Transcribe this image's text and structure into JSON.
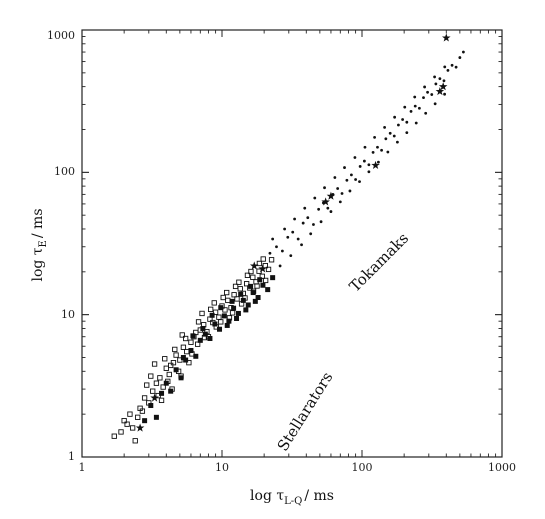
{
  "chart_data": {
    "type": "scatter",
    "title": "",
    "xscale": "log",
    "yscale": "log",
    "xlim": [
      1,
      1000
    ],
    "ylim": [
      1,
      1000
    ],
    "grid": false,
    "xlabel": {
      "main": "log τ",
      "sub": "L-Q",
      "rest": "/ ms"
    },
    "ylabel": {
      "main": "log τ",
      "sub": "E",
      "rest": "/ ms"
    },
    "x_ticks": [
      {
        "value": 1,
        "label": "1"
      },
      {
        "value": 10,
        "label": "10"
      },
      {
        "value": 100,
        "label": "100"
      },
      {
        "value": 1000,
        "label": "1000"
      }
    ],
    "y_ticks": [
      {
        "value": 1,
        "label": "1"
      },
      {
        "value": 10,
        "label": "10"
      },
      {
        "value": 100,
        "label": "100"
      },
      {
        "value": 1000,
        "label": "1000"
      }
    ],
    "annotations": [
      {
        "text": "Tokamaks",
        "x": 140,
        "y": 22,
        "rotation": -45
      },
      {
        "text": "Stellarators",
        "x": 42,
        "y": 2.0,
        "rotation": -58
      }
    ],
    "series": [
      {
        "marker": "open-square",
        "color": "#111111",
        "points": [
          [
            1.7,
            1.4
          ],
          [
            1.9,
            1.5
          ],
          [
            2.1,
            1.7
          ],
          [
            2.3,
            1.6
          ],
          [
            2.5,
            1.9
          ],
          [
            2.6,
            2.2
          ],
          [
            2.8,
            2.6
          ],
          [
            3.0,
            2.4
          ],
          [
            3.2,
            2.9
          ],
          [
            3.4,
            3.3
          ],
          [
            3.6,
            3.6
          ],
          [
            3.8,
            3.1
          ],
          [
            4.0,
            4.2
          ],
          [
            4.2,
            3.8
          ],
          [
            4.5,
            4.6
          ],
          [
            4.7,
            5.2
          ],
          [
            5.0,
            4.8
          ],
          [
            5.3,
            5.9
          ],
          [
            5.6,
            5.5
          ],
          [
            6.0,
            6.4
          ],
          [
            6.3,
            7.0
          ],
          [
            6.7,
            6.2
          ],
          [
            7.0,
            7.8
          ],
          [
            7.4,
            8.5
          ],
          [
            7.8,
            7.6
          ],
          [
            8.2,
            9.3
          ],
          [
            8.6,
            8.8
          ],
          [
            9.0,
            10.4
          ],
          [
            9.5,
            9.6
          ],
          [
            10.0,
            11.5
          ],
          [
            10.5,
            10.8
          ],
          [
            11.0,
            12.6
          ],
          [
            11.6,
            11.2
          ],
          [
            12.2,
            13.8
          ],
          [
            12.8,
            12.9
          ],
          [
            13.5,
            15.2
          ],
          [
            14.2,
            14.1
          ],
          [
            15.0,
            16.5
          ],
          [
            15.8,
            15.4
          ],
          [
            16.6,
            18.3
          ],
          [
            17.5,
            17.0
          ],
          [
            18.4,
            20.2
          ],
          [
            19.4,
            18.6
          ],
          [
            20.4,
            22.1
          ],
          [
            21.5,
            20.8
          ],
          [
            22.6,
            24.3
          ],
          [
            2.2,
            2.0
          ],
          [
            2.7,
            2.1
          ],
          [
            3.1,
            3.7
          ],
          [
            3.5,
            2.7
          ],
          [
            3.9,
            4.9
          ],
          [
            4.3,
            4.4
          ],
          [
            4.9,
            4.0
          ],
          [
            5.5,
            6.8
          ],
          [
            6.1,
            5.3
          ],
          [
            6.8,
            8.9
          ],
          [
            7.5,
            6.9
          ],
          [
            8.3,
            10.9
          ],
          [
            9.1,
            8.2
          ],
          [
            10.2,
            13.2
          ],
          [
            11.3,
            9.5
          ],
          [
            12.5,
            15.8
          ],
          [
            13.8,
            11.9
          ],
          [
            15.2,
            18.9
          ],
          [
            16.8,
            14.6
          ],
          [
            18.5,
            22.9
          ],
          [
            20.5,
            17.4
          ],
          [
            2.4,
            1.3
          ],
          [
            2.9,
            3.2
          ],
          [
            3.3,
            4.5
          ],
          [
            4.1,
            3.4
          ],
          [
            4.6,
            5.7
          ],
          [
            5.2,
            7.2
          ],
          [
            5.8,
            4.6
          ],
          [
            6.5,
            7.5
          ],
          [
            7.2,
            10.2
          ],
          [
            8.0,
            7.0
          ],
          [
            8.8,
            12.1
          ],
          [
            9.8,
            8.9
          ],
          [
            10.8,
            14.3
          ],
          [
            11.9,
            10.3
          ],
          [
            13.2,
            16.9
          ],
          [
            14.6,
            13.1
          ],
          [
            16.1,
            20.1
          ],
          [
            17.8,
            15.9
          ],
          [
            19.7,
            24.6
          ],
          [
            2.0,
            1.8
          ],
          [
            3.7,
            2.5
          ],
          [
            4.4,
            3.0
          ],
          [
            5.1,
            3.7
          ]
        ]
      },
      {
        "marker": "filled-square",
        "color": "#111111",
        "points": [
          [
            2.8,
            1.8
          ],
          [
            3.1,
            2.3
          ],
          [
            3.4,
            1.9
          ],
          [
            3.7,
            2.8
          ],
          [
            4.0,
            3.3
          ],
          [
            4.3,
            2.9
          ],
          [
            4.7,
            4.1
          ],
          [
            5.1,
            3.6
          ],
          [
            5.5,
            4.8
          ],
          [
            6.0,
            5.6
          ],
          [
            6.5,
            5.1
          ],
          [
            7.0,
            6.6
          ],
          [
            7.6,
            7.3
          ],
          [
            8.2,
            6.8
          ],
          [
            8.9,
            8.6
          ],
          [
            9.6,
            7.9
          ],
          [
            10.4,
            9.8
          ],
          [
            11.2,
            9.0
          ],
          [
            12.1,
            11.1
          ],
          [
            13.1,
            10.2
          ],
          [
            14.2,
            12.6
          ],
          [
            15.4,
            11.7
          ],
          [
            16.7,
            14.3
          ],
          [
            18.1,
            13.2
          ],
          [
            19.6,
            16.1
          ],
          [
            21.2,
            15.0
          ],
          [
            23.0,
            18.2
          ],
          [
            9.8,
            11.2
          ],
          [
            10.9,
            8.4
          ],
          [
            11.8,
            12.4
          ],
          [
            12.7,
            9.4
          ],
          [
            13.6,
            13.9
          ],
          [
            14.8,
            10.8
          ],
          [
            16.0,
            15.8
          ],
          [
            17.3,
            12.4
          ],
          [
            18.6,
            17.6
          ],
          [
            8.5,
            9.9
          ],
          [
            7.3,
            8.0
          ],
          [
            6.2,
            7.1
          ],
          [
            5.3,
            5.0
          ]
        ]
      },
      {
        "marker": "dot",
        "color": "#111111",
        "points": [
          [
            22.0,
            27.0
          ],
          [
            24.5,
            30.0
          ],
          [
            27.0,
            28.0
          ],
          [
            29.5,
            35.0
          ],
          [
            32.0,
            38.0
          ],
          [
            35.0,
            34.0
          ],
          [
            38.0,
            44.0
          ],
          [
            41.0,
            48.0
          ],
          [
            45.0,
            43.0
          ],
          [
            49.0,
            55.0
          ],
          [
            53.0,
            61.0
          ],
          [
            57.0,
            56.0
          ],
          [
            62.0,
            70.0
          ],
          [
            67.0,
            77.0
          ],
          [
            72.0,
            71.0
          ],
          [
            78.0,
            88.0
          ],
          [
            84.0,
            96.0
          ],
          [
            90.0,
            89.0
          ],
          [
            97.0,
            110.0
          ],
          [
            104.0,
            120.0
          ],
          [
            112.0,
            113.0
          ],
          [
            120.0,
            138.0
          ],
          [
            129.0,
            150.0
          ],
          [
            138.0,
            143.0
          ],
          [
            148.0,
            172.0
          ],
          [
            159.0,
            188.0
          ],
          [
            170.0,
            180.0
          ],
          [
            182.0,
            215.0
          ],
          [
            195.0,
            235.0
          ],
          [
            209.0,
            225.0
          ],
          [
            224.0,
            268.0
          ],
          [
            240.0,
            292.0
          ],
          [
            257.0,
            282.0
          ],
          [
            275.0,
            335.0
          ],
          [
            294.0,
            365.0
          ],
          [
            315.0,
            352.0
          ],
          [
            337.0,
            418.0
          ],
          [
            360.0,
            455.0
          ],
          [
            385.0,
            440.0
          ],
          [
            411.0,
            520.0
          ],
          [
            440.0,
            565.0
          ],
          [
            470.0,
            548.0
          ],
          [
            500.0,
            640.0
          ],
          [
            530.0,
            700.0
          ],
          [
            26.0,
            22.0
          ],
          [
            31.0,
            26.0
          ],
          [
            37.0,
            31.0
          ],
          [
            43.0,
            37.0
          ],
          [
            51.0,
            45.0
          ],
          [
            60.0,
            53.0
          ],
          [
            70.0,
            62.0
          ],
          [
            82.0,
            74.0
          ],
          [
            96.0,
            86.0
          ],
          [
            112.0,
            101.0
          ],
          [
            131.0,
            118.0
          ],
          [
            153.0,
            139.0
          ],
          [
            179.0,
            163.0
          ],
          [
            209.0,
            190.0
          ],
          [
            244.0,
            222.0
          ],
          [
            285.0,
            260.0
          ],
          [
            333.0,
            303.0
          ],
          [
            389.0,
            354.0
          ],
          [
            23.0,
            34.0
          ],
          [
            28.0,
            40.0
          ],
          [
            33.0,
            47.0
          ],
          [
            39.0,
            56.0
          ],
          [
            46.0,
            66.0
          ],
          [
            54.0,
            78.0
          ],
          [
            64.0,
            92.0
          ],
          [
            75.0,
            108.0
          ],
          [
            89.0,
            127.0
          ],
          [
            105.0,
            150.0
          ],
          [
            123.0,
            176.0
          ],
          [
            145.0,
            207.0
          ],
          [
            171.0,
            244.0
          ],
          [
            202.0,
            287.0
          ],
          [
            238.0,
            338.0
          ],
          [
            280.0,
            398.0
          ],
          [
            330.0,
            468.0
          ],
          [
            390.0,
            551.0
          ]
        ]
      },
      {
        "marker": "star",
        "color": "#111111",
        "points": [
          [
            2.6,
            1.6
          ],
          [
            3.3,
            2.6
          ],
          [
            17.0,
            22.0
          ],
          [
            19.5,
            21.0
          ],
          [
            55.0,
            62.0
          ],
          [
            60.0,
            68.0
          ],
          [
            125.0,
            112.0
          ],
          [
            360.0,
            370.0
          ],
          [
            380.0,
            400.0
          ],
          [
            400.0,
            880.0
          ]
        ]
      }
    ]
  }
}
